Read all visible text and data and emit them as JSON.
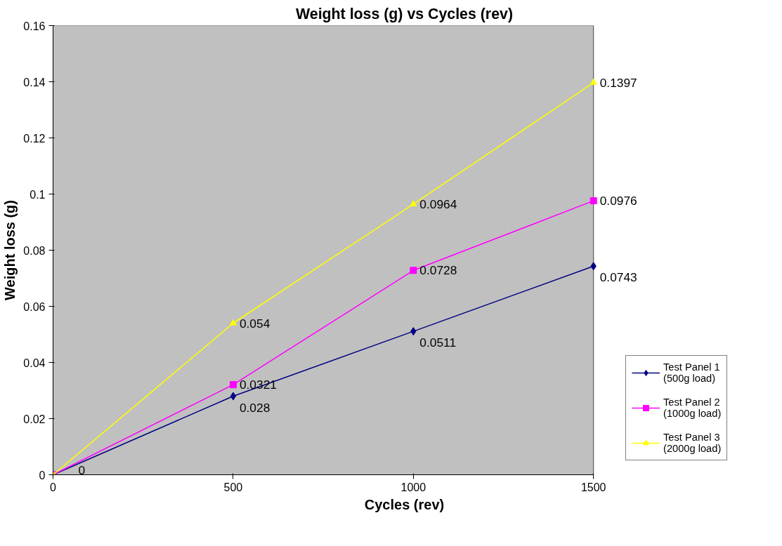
{
  "chart_data": {
    "type": "line",
    "title": "Weight loss (g) vs Cycles (rev)",
    "xlabel": "Cycles (rev)",
    "ylabel": "Weight loss (g)",
    "x": [
      0,
      500,
      1000,
      1500
    ],
    "series": [
      {
        "name": "Test Panel 1\n(500g load)",
        "color": "#000080",
        "marker": "diamond",
        "values": [
          0,
          0.028,
          0.0511,
          0.0743
        ],
        "value_labels": [
          null,
          "0.028",
          "0.0511",
          "0.0743"
        ]
      },
      {
        "name": "Test Panel 2\n(1000g load)",
        "color": "#ff00ff",
        "marker": "square",
        "values": [
          0,
          0.0321,
          0.0728,
          0.0976
        ],
        "value_labels": [
          "0",
          "0.0321",
          "0.0728",
          "0.0976"
        ]
      },
      {
        "name": "Test Panel 3\n(2000g load)",
        "color": "#ffff00",
        "marker": "triangle",
        "values": [
          0,
          0.054,
          0.0964,
          0.1397
        ],
        "value_labels": [
          null,
          "0.054",
          "0.0964",
          "0.1397"
        ]
      }
    ],
    "xlim": [
      0,
      1500
    ],
    "xticks": [
      0,
      500,
      1000,
      1500
    ],
    "ylim": [
      0,
      0.16
    ],
    "yticks": [
      0,
      0.02,
      0.04,
      0.06,
      0.08,
      0.1,
      0.12,
      0.14,
      0.16
    ],
    "grid": false,
    "legend": "right",
    "data_labels": true
  }
}
